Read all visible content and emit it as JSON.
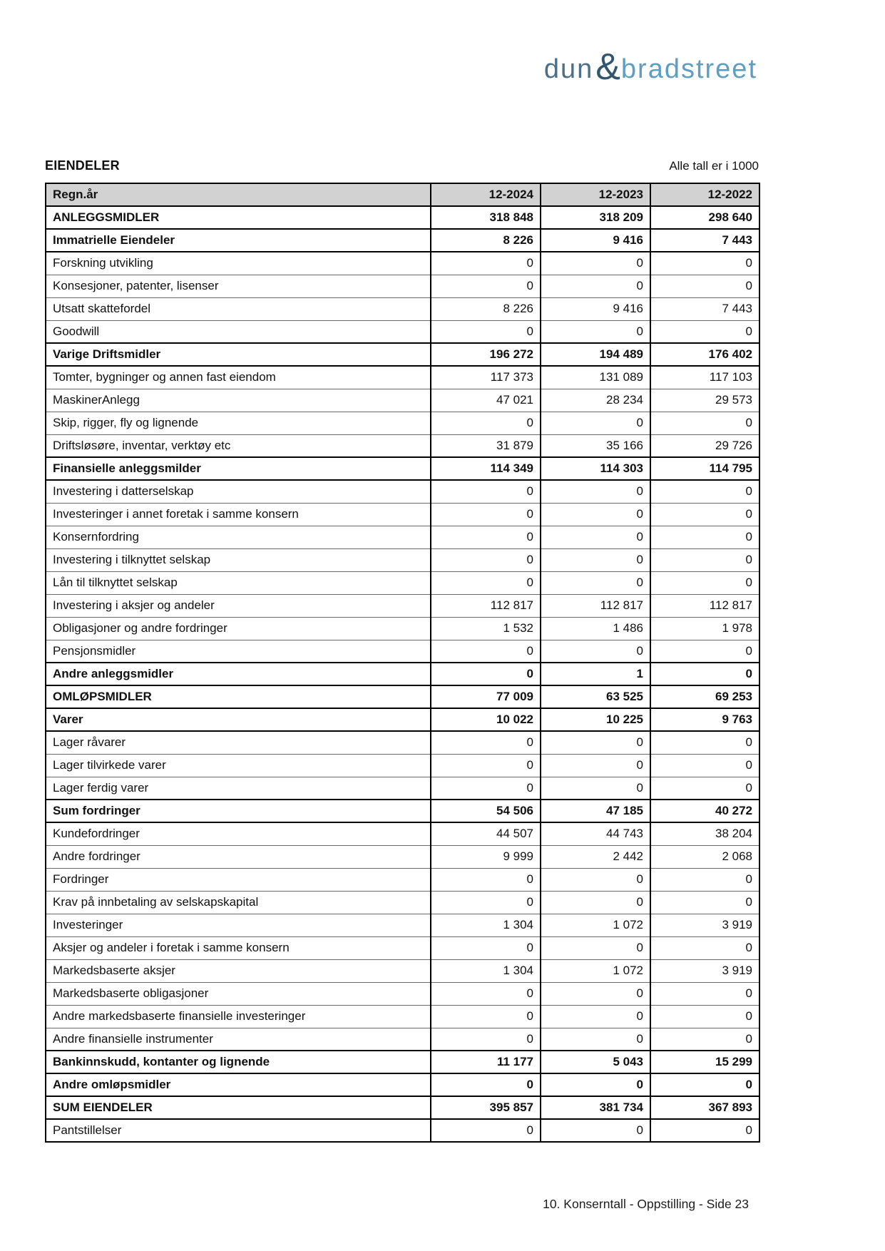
{
  "logo": {
    "dun": "dun",
    "ampersand": "&",
    "bradstreet": "bradstreet"
  },
  "header": {
    "title": "EIENDELER",
    "note": "Alle tall er i 1000"
  },
  "colors": {
    "logo_dun": "#4b708a",
    "logo_ampersand": "#33566e",
    "logo_bradstreet": "#5d9ec1",
    "table_header_bg": "#d2d2d2",
    "border": "#000000"
  },
  "table": {
    "columns": [
      "Regn.år",
      "12-2024",
      "12-2023",
      "12-2022"
    ],
    "rows": [
      {
        "label": "ANLEGGSMIDLER",
        "bold": true,
        "values": [
          "318 848",
          "318 209",
          "298 640"
        ]
      },
      {
        "label": "Immatrielle Eiendeler",
        "bold": true,
        "values": [
          "8 226",
          "9 416",
          "7 443"
        ]
      },
      {
        "label": "Forskning utvikling",
        "bold": false,
        "values": [
          "0",
          "0",
          "0"
        ]
      },
      {
        "label": "Konsesjoner, patenter, lisenser",
        "bold": false,
        "values": [
          "0",
          "0",
          "0"
        ]
      },
      {
        "label": "Utsatt skattefordel",
        "bold": false,
        "values": [
          "8 226",
          "9 416",
          "7 443"
        ]
      },
      {
        "label": "Goodwill",
        "bold": false,
        "values": [
          "0",
          "0",
          "0"
        ]
      },
      {
        "label": "Varige Driftsmidler",
        "bold": true,
        "values": [
          "196 272",
          "194 489",
          "176 402"
        ]
      },
      {
        "label": "Tomter, bygninger og annen fast eiendom",
        "bold": false,
        "values": [
          "117 373",
          "131 089",
          "117 103"
        ]
      },
      {
        "label": "MaskinerAnlegg",
        "bold": false,
        "values": [
          "47 021",
          "28 234",
          "29 573"
        ]
      },
      {
        "label": "Skip, rigger, fly og lignende",
        "bold": false,
        "values": [
          "0",
          "0",
          "0"
        ]
      },
      {
        "label": "Driftsløsøre, inventar, verktøy etc",
        "bold": false,
        "values": [
          "31 879",
          "35 166",
          "29 726"
        ]
      },
      {
        "label": "Finansielle anleggsmilder",
        "bold": true,
        "values": [
          "114 349",
          "114 303",
          "114 795"
        ]
      },
      {
        "label": "Investering i datterselskap",
        "bold": false,
        "values": [
          "0",
          "0",
          "0"
        ]
      },
      {
        "label": "Investeringer i annet foretak i samme konsern",
        "bold": false,
        "values": [
          "0",
          "0",
          "0"
        ]
      },
      {
        "label": "Konsernfordring",
        "bold": false,
        "values": [
          "0",
          "0",
          "0"
        ]
      },
      {
        "label": "Investering i tilknyttet selskap",
        "bold": false,
        "values": [
          "0",
          "0",
          "0"
        ]
      },
      {
        "label": "Lån til tilknyttet selskap",
        "bold": false,
        "values": [
          "0",
          "0",
          "0"
        ]
      },
      {
        "label": "Investering i aksjer og andeler",
        "bold": false,
        "values": [
          "112 817",
          "112 817",
          "112 817"
        ]
      },
      {
        "label": "Obligasjoner og andre fordringer",
        "bold": false,
        "values": [
          "1 532",
          "1 486",
          "1 978"
        ]
      },
      {
        "label": "Pensjonsmidler",
        "bold": false,
        "values": [
          "0",
          "0",
          "0"
        ]
      },
      {
        "label": "Andre anleggsmidler",
        "bold": true,
        "values": [
          "0",
          "1",
          "0"
        ]
      },
      {
        "label": "OMLØPSMIDLER",
        "bold": true,
        "values": [
          "77 009",
          "63 525",
          "69 253"
        ]
      },
      {
        "label": "Varer",
        "bold": true,
        "values": [
          "10 022",
          "10 225",
          "9 763"
        ]
      },
      {
        "label": "Lager råvarer",
        "bold": false,
        "values": [
          "0",
          "0",
          "0"
        ]
      },
      {
        "label": "Lager tilvirkede varer",
        "bold": false,
        "values": [
          "0",
          "0",
          "0"
        ]
      },
      {
        "label": "Lager ferdig varer",
        "bold": false,
        "values": [
          "0",
          "0",
          "0"
        ]
      },
      {
        "label": "Sum fordringer",
        "bold": true,
        "values": [
          "54 506",
          "47 185",
          "40 272"
        ]
      },
      {
        "label": "Kundefordringer",
        "bold": false,
        "values": [
          "44 507",
          "44 743",
          "38 204"
        ]
      },
      {
        "label": "Andre fordringer",
        "bold": false,
        "values": [
          "9 999",
          "2 442",
          "2 068"
        ]
      },
      {
        "label": "Fordringer",
        "bold": false,
        "values": [
          "0",
          "0",
          "0"
        ]
      },
      {
        "label": "Krav på innbetaling av selskapskapital",
        "bold": false,
        "values": [
          "0",
          "0",
          "0"
        ]
      },
      {
        "label": "Investeringer",
        "bold": false,
        "values": [
          "1 304",
          "1 072",
          "3 919"
        ]
      },
      {
        "label": "Aksjer og andeler i foretak i samme konsern",
        "bold": false,
        "values": [
          "0",
          "0",
          "0"
        ]
      },
      {
        "label": "Markedsbaserte aksjer",
        "bold": false,
        "values": [
          "1 304",
          "1 072",
          "3 919"
        ]
      },
      {
        "label": "Markedsbaserte obligasjoner",
        "bold": false,
        "values": [
          "0",
          "0",
          "0"
        ]
      },
      {
        "label": "Andre markedsbaserte finansielle investeringer",
        "bold": false,
        "values": [
          "0",
          "0",
          "0"
        ]
      },
      {
        "label": "Andre finansielle instrumenter",
        "bold": false,
        "values": [
          "0",
          "0",
          "0"
        ]
      },
      {
        "label": "Bankinnskudd, kontanter og lignende",
        "bold": true,
        "values": [
          "11 177",
          "5 043",
          "15 299"
        ]
      },
      {
        "label": "Andre omløpsmidler",
        "bold": true,
        "values": [
          "0",
          "0",
          "0"
        ]
      },
      {
        "label": "SUM EIENDELER",
        "bold": true,
        "values": [
          "395 857",
          "381 734",
          "367 893"
        ]
      },
      {
        "label": "Pantstillelser",
        "bold": false,
        "values": [
          "0",
          "0",
          "0"
        ]
      }
    ]
  },
  "footer": {
    "text": "10. Konserntall - Oppstilling - Side 23"
  }
}
